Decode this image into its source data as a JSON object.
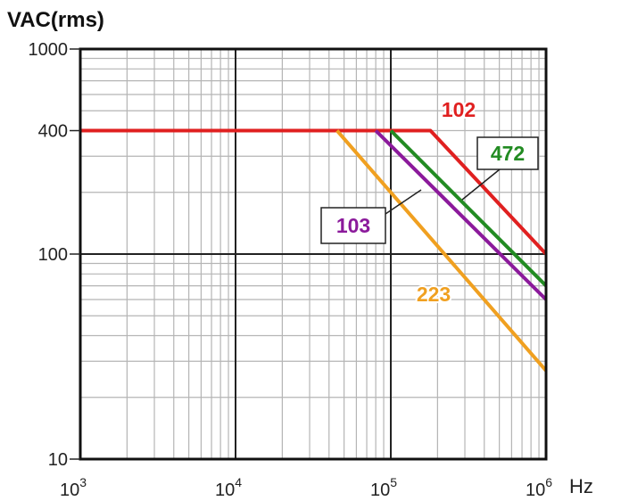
{
  "chart_data": {
    "type": "line",
    "ylabel": "VAC(rms)",
    "xlabel": "Hz",
    "x_scale": "log",
    "y_scale": "log",
    "xlim": [
      1000,
      1000000
    ],
    "ylim": [
      10,
      1000
    ],
    "x_ticks": [
      {
        "base": "10",
        "exp": "3",
        "value": 1000
      },
      {
        "base": "10",
        "exp": "4",
        "value": 10000
      },
      {
        "base": "10",
        "exp": "5",
        "value": 100000
      },
      {
        "base": "10",
        "exp": "6",
        "value": 1000000
      }
    ],
    "y_ticks": [
      {
        "label": "1000",
        "value": 1000
      },
      {
        "label": "400",
        "value": 400
      },
      {
        "label": "100",
        "value": 100
      },
      {
        "label": "10",
        "value": 10
      }
    ],
    "grid": true,
    "series": [
      {
        "name": "102",
        "color": "#e02020",
        "points": [
          [
            1000,
            400
          ],
          [
            180000,
            400
          ],
          [
            1000000,
            100
          ]
        ]
      },
      {
        "name": "472",
        "color": "#228b22",
        "points": [
          [
            100000,
            400
          ],
          [
            1000000,
            70
          ]
        ]
      },
      {
        "name": "103",
        "color": "#8b1a9b",
        "points": [
          [
            80000,
            400
          ],
          [
            1000000,
            60
          ]
        ]
      },
      {
        "name": "223",
        "color": "#f0a020",
        "points": [
          [
            45000,
            400
          ],
          [
            1000000,
            27
          ]
        ]
      }
    ]
  }
}
